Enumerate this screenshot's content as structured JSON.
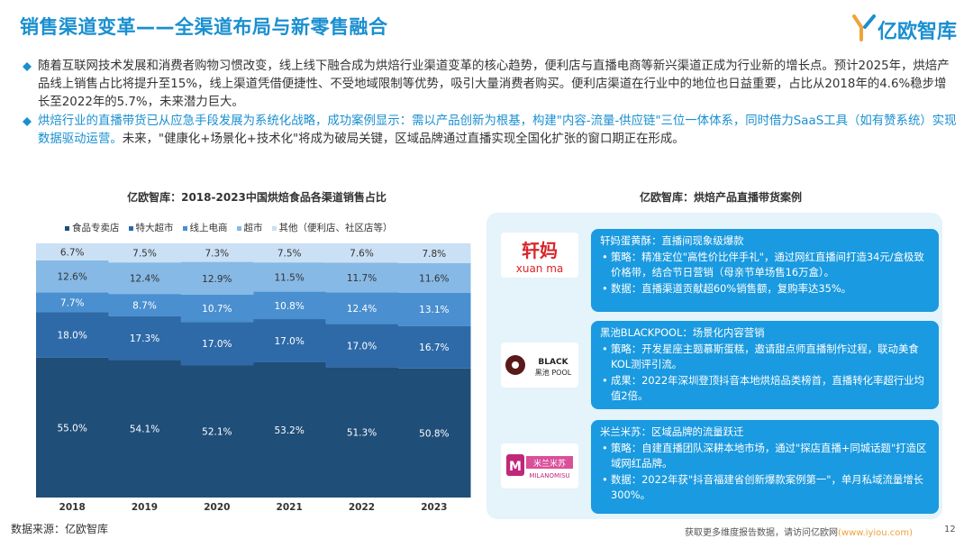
{
  "page": {
    "title": "销售渠道变革——全渠道布局与新零售融合",
    "logo_text": "亿欧智库",
    "page_number": "12",
    "footer_source": "数据来源：亿欧智库",
    "footer_note": "获取更多维度报告数据，请访问亿欧网",
    "footer_link": "(www.iyiou.com)"
  },
  "bullets": [
    {
      "text": "随着互联网技术发展和消费者购物习惯改变，线上线下融合成为烘焙行业渠道变革的核心趋势，便利店与直播电商等新兴渠道正成为行业新的增长点。预计2025年，烘焙产品线上销售占比将提升至15%，线上渠道凭借便捷性、不受地域限制等优势，吸引大量消费者购买。便利店渠道在行业中的地位也日益重要，占比从2018年的4.6%稳步增长至2022年的5.7%，未来潜力巨大。",
      "highlight": false
    },
    {
      "text": "烘焙行业的直播带货已从应急手段发展为系统化战略，成功案例显示：需以产品创新为根基，构建\"内容-流量-供应链\"三位一体体系，同时借力SaaS工具（如有赞系统）实现数据驱动运营。未来，\"健康化+场景化+技术化\"将成为破局关键，区域品牌通过直播实现全国化扩张的窗口期正在形成。",
      "highlight_prefix": "烘焙行业的直播带货已从应急手段发展为系统化战略，成功案例显示：需以产品创新为根基，构建\"内容-流量-供应链\"三位一体体系，同时借力SaaS工具（如有赞系统）实现数据驱动运营。",
      "highlight": true
    }
  ],
  "chart_data": {
    "type": "bar",
    "stacked": true,
    "percent": true,
    "title": "亿欧智库：2018-2023中国烘焙食品各渠道销售占比",
    "categories": [
      "2018",
      "2019",
      "2020",
      "2021",
      "2022",
      "2023"
    ],
    "series": [
      {
        "name": "食品专卖店",
        "color": "#1f4e79",
        "values": [
          55.0,
          54.1,
          52.1,
          53.2,
          51.3,
          50.8
        ]
      },
      {
        "name": "特大超市",
        "color": "#2e6aa8",
        "values": [
          18.0,
          17.3,
          17.0,
          17.0,
          17.0,
          16.7
        ]
      },
      {
        "name": "线上电商",
        "color": "#4a8fd0",
        "values": [
          7.7,
          8.7,
          10.7,
          10.8,
          12.4,
          13.1
        ]
      },
      {
        "name": "超市",
        "color": "#86b9e6",
        "values": [
          12.6,
          12.4,
          12.9,
          11.5,
          11.7,
          11.6
        ]
      },
      {
        "name": "其他（便利店、社区店等）",
        "color": "#c9e0f5",
        "values": [
          6.7,
          7.5,
          7.3,
          7.5,
          7.6,
          7.8
        ]
      }
    ],
    "labels": {
      "食品专卖店": [
        "55.0%",
        "54.1%",
        "52.1%",
        "53.2%",
        "51.3%",
        "50.8%"
      ],
      "特大超市": [
        "18.0%",
        "17.3%",
        "17.0%",
        "17.0%",
        "17.0%",
        "16.7%"
      ],
      "线上电商": [
        "7.7%",
        "8.7%",
        "10.7%",
        "10.8%",
        "12.4%",
        "13.1%"
      ],
      "超市": [
        "12.6%",
        "12.4%",
        "12.9%",
        "11.5%",
        "11.7%",
        "11.6%"
      ],
      "其他（便利店、社区店等）": [
        "6.7%",
        "7.5%",
        "7.3%",
        "7.5%",
        "7.6%",
        "7.8%"
      ]
    },
    "ylim": [
      0,
      100
    ],
    "legend_position": "top"
  },
  "cases": {
    "title": "亿欧智库：烘焙产品直播带货案例",
    "items": [
      {
        "brand": "轩妈蛋黄酥",
        "brand_logo_text": "轩妈",
        "brand_logo_sub": "xuan ma",
        "head": "轩妈蛋黄酥：直播间现象级爆款",
        "lines": [
          "策略：精准定位\"高性价比伴手礼\"，通过网红直播间打造34元/盒极致价格带，结合节日营销（母亲节单场售16万盒）。",
          "数据：直播渠道贡献超60%销售额，复购率达35%。"
        ]
      },
      {
        "brand": "黑池BLACKPOOL",
        "brand_logo_text": "BLACK",
        "brand_logo_sub": "黑池 POOL",
        "head": "黑池BLACKPOOL：场景化内容营销",
        "lines": [
          "策略：开发星座主题慕斯蛋糕，邀请甜点师直播制作过程，联动美食KOL测评引流。",
          "成果：2022年深圳登顶抖音本地烘焙品类榜首，直播转化率超行业均值2倍。"
        ]
      },
      {
        "brand": "米兰米苏",
        "brand_logo_text": "米兰米苏",
        "brand_logo_sub": "MILANOMISU",
        "head": "米兰米苏：区域品牌的流量跃迁",
        "lines": [
          "策略：自建直播团队深耕本地市场，通过\"探店直播+同城话题\"打造区域网红品牌。",
          "数据：2022年获\"抖音福建省创新爆款案例第一\"，单月私域流量增长300%。"
        ]
      }
    ]
  }
}
